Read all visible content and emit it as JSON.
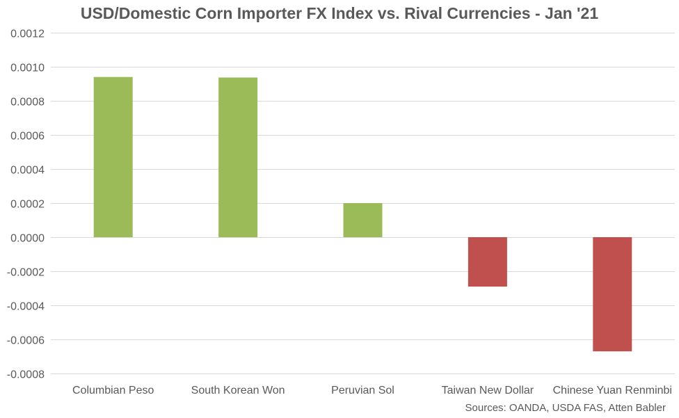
{
  "chart_data": {
    "type": "bar",
    "title": "USD/Domestic Corn Importer FX Index vs. Rival Currencies - Jan '21",
    "source": "Sources: OANDA, USDA FAS, Atten Babler",
    "xlabel": "",
    "ylabel": "",
    "categories": [
      "Columbian Peso",
      "South Korean Won",
      "Peruvian Sol",
      "Taiwan New Dollar",
      "Chinese Yuan Renminbi"
    ],
    "values": [
      0.00094,
      0.000937,
      0.0002,
      -0.00029,
      -0.00067
    ],
    "ylim": [
      -0.0008,
      0.0012
    ],
    "yticks": [
      0.0012,
      0.001,
      0.0008,
      0.0006,
      0.0004,
      0.0002,
      0.0,
      -0.0002,
      -0.0004,
      -0.0006,
      -0.0008
    ],
    "ytick_labels": [
      "0.0012",
      "0.0010",
      "0.0008",
      "0.0006",
      "0.0004",
      "0.0002",
      "0.0000",
      "-0.0002",
      "-0.0004",
      "-0.0006",
      "-0.0008"
    ],
    "grid": true,
    "legend": "none",
    "colors": {
      "positive": "#9BBB59",
      "negative": "#C0504D",
      "gridline": "#D9D9D9",
      "text": "#595959"
    }
  }
}
